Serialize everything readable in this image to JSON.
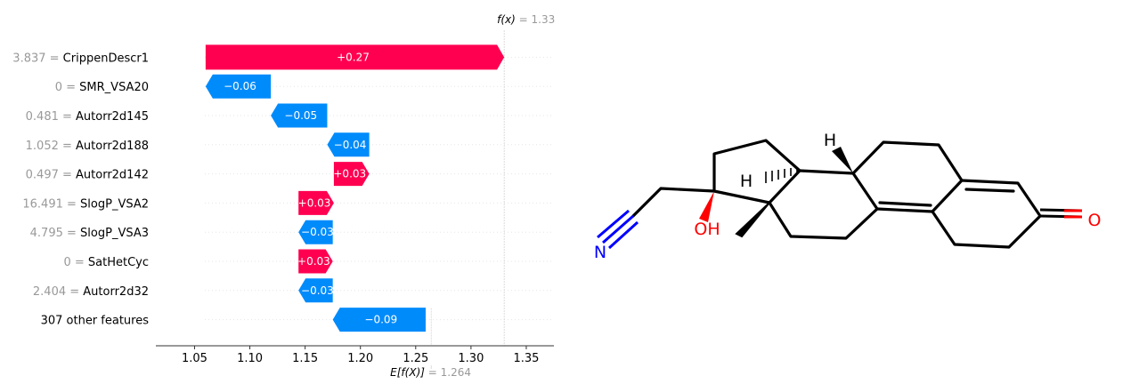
{
  "chart_data": {
    "type": "waterfall",
    "output_label": "f(x)",
    "output_value": "1.33",
    "base_label": "E[f(X)]",
    "base_value": "1.264",
    "fx": 1.33,
    "base": 1.264,
    "xlim": [
      1.015,
      1.375
    ],
    "x_ticks": [
      "1.05",
      "1.10",
      "1.15",
      "1.20",
      "1.25",
      "1.30",
      "1.35"
    ],
    "features": [
      {
        "value": "3.837",
        "name": "CrippenDescr1",
        "contribution": 0.27,
        "label": "+0.27"
      },
      {
        "value": "0",
        "name": "SMR_VSA20",
        "contribution": -0.06,
        "label": "−0.06"
      },
      {
        "value": "0.481",
        "name": "Autorr2d145",
        "contribution": -0.05,
        "label": "−0.05"
      },
      {
        "value": "1.052",
        "name": "Autorr2d188",
        "contribution": -0.04,
        "label": "−0.04"
      },
      {
        "value": "0.497",
        "name": "Autorr2d142",
        "contribution": 0.03,
        "label": "+0.03"
      },
      {
        "value": "16.491",
        "name": "SlogP_VSA2",
        "contribution": 0.03,
        "label": "+0.03"
      },
      {
        "value": "4.795",
        "name": "SlogP_VSA3",
        "contribution": -0.03,
        "label": "−0.03"
      },
      {
        "value": "0",
        "name": "SatHetCyc",
        "contribution": 0.03,
        "label": "+0.03"
      },
      {
        "value": "2.404",
        "name": "Autorr2d32",
        "contribution": -0.03,
        "label": "−0.03"
      },
      {
        "value": "",
        "name": "307 other features",
        "contribution": -0.09,
        "label": "−0.09"
      }
    ],
    "segments": [
      [
        1.06,
        1.33
      ],
      [
        1.06,
        1.119
      ],
      [
        1.119,
        1.17
      ],
      [
        1.17,
        1.208
      ],
      [
        1.176,
        1.208
      ],
      [
        1.144,
        1.176
      ],
      [
        1.144,
        1.175
      ],
      [
        1.144,
        1.175
      ],
      [
        1.144,
        1.175
      ],
      [
        1.175,
        1.259
      ]
    ],
    "colors": {
      "positive": "#ff0051",
      "negative": "#008bfb",
      "value_text": "#999999"
    }
  },
  "molecule": {
    "atoms": [
      "H",
      "H",
      "OH",
      "N",
      "O"
    ]
  }
}
